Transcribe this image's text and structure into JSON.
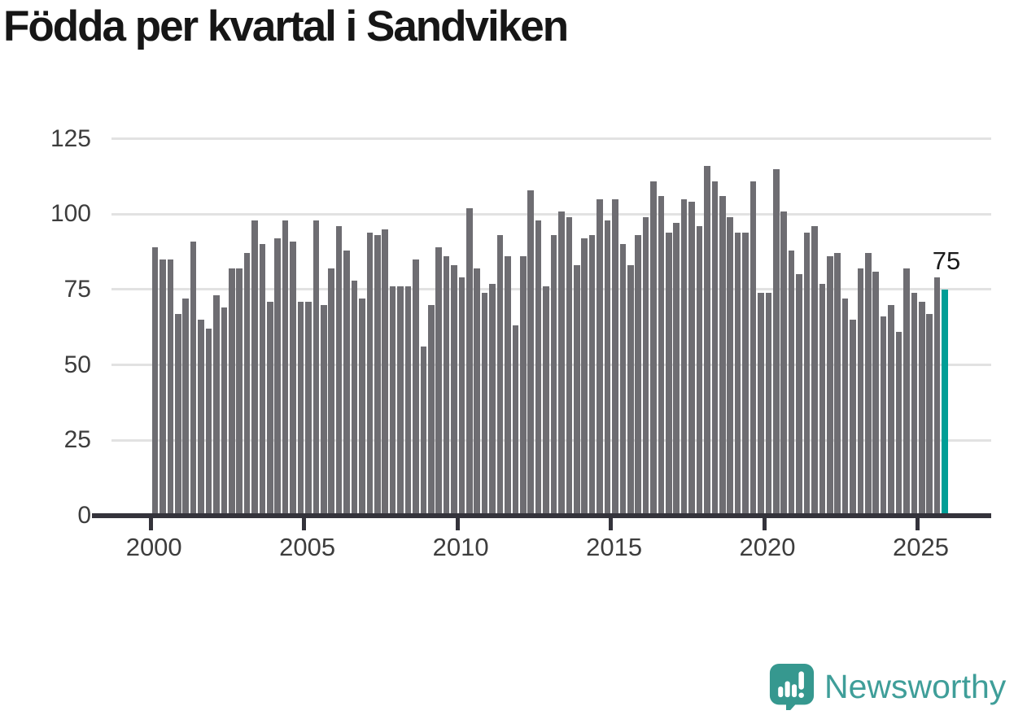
{
  "title": "Födda per kvartal i Sandviken",
  "chart_data": {
    "type": "bar",
    "title": "Födda per kvartal i Sandviken",
    "x_unit": "quarter",
    "start_period": "2000 Q1",
    "end_period": "2025 Q4",
    "x_tick_labels": [
      "2000",
      "2005",
      "2010",
      "2015",
      "2020",
      "2025"
    ],
    "x_tick_quarter_index": [
      0,
      20,
      40,
      60,
      80,
      100
    ],
    "y_ticks": [
      0,
      25,
      50,
      75,
      100,
      125
    ],
    "ylim": [
      0,
      125
    ],
    "grid": "horizontal",
    "legend": "none",
    "values": [
      89,
      85,
      85,
      67,
      72,
      91,
      65,
      62,
      73,
      69,
      82,
      82,
      87,
      98,
      90,
      71,
      92,
      98,
      91,
      71,
      71,
      98,
      70,
      82,
      96,
      88,
      78,
      72,
      94,
      93,
      95,
      76,
      76,
      76,
      85,
      56,
      70,
      89,
      86,
      83,
      79,
      102,
      82,
      74,
      77,
      93,
      86,
      63,
      86,
      108,
      98,
      76,
      93,
      101,
      99,
      83,
      92,
      93,
      105,
      98,
      105,
      90,
      83,
      93,
      99,
      111,
      106,
      94,
      97,
      105,
      104,
      96,
      116,
      111,
      106,
      99,
      94,
      94,
      111,
      74,
      74,
      115,
      101,
      88,
      80,
      94,
      96,
      77,
      86,
      87,
      72,
      65,
      82,
      87,
      81,
      66,
      70,
      61,
      82,
      74,
      71,
      67,
      79,
      75
    ],
    "highlight_last_bar": true,
    "highlight_value_label": "75",
    "bar_color": "#6e6d72",
    "highlight_color": "#009e96",
    "gridline_color": "#e2e2e2",
    "axis_color": "#34333b",
    "tick_label_color": "#3d3d3d"
  },
  "annotation": {
    "last_value_label": "75"
  },
  "footer": {
    "brand": "Newsworthy",
    "logo_icon": "newsworthy-chart-bubble-icon",
    "logo_color": "#36988f",
    "text_color": "#3f9e99"
  }
}
